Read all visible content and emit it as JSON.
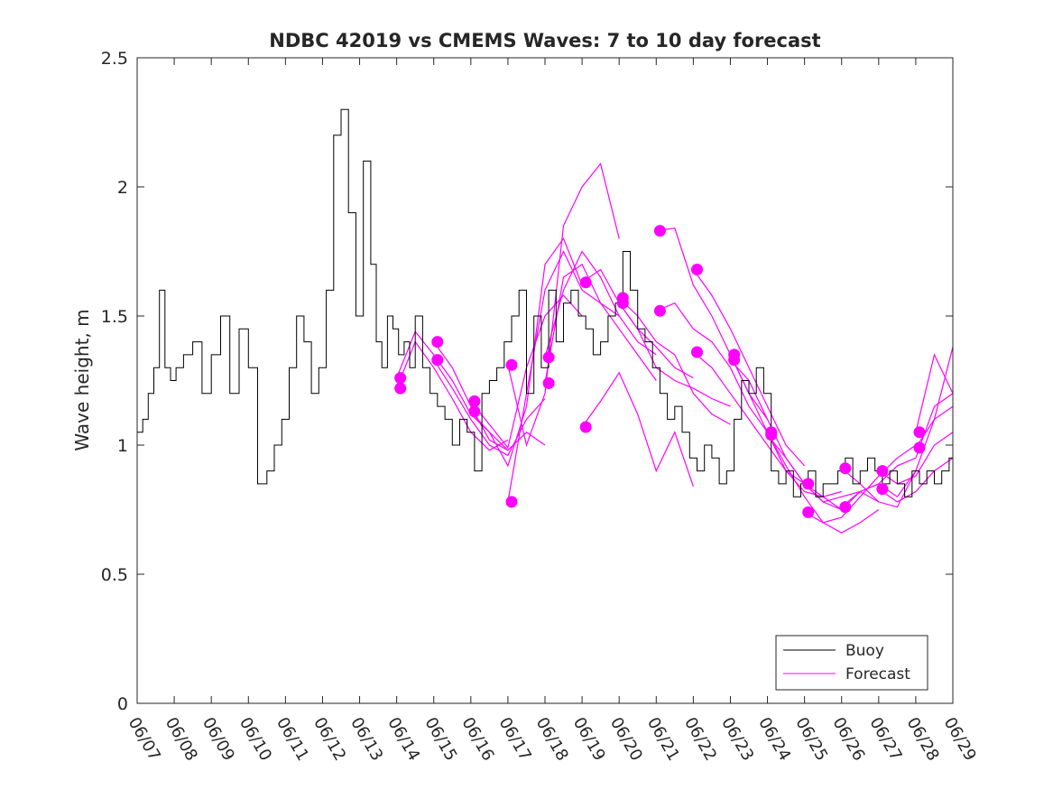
{
  "chart_data": {
    "type": "line",
    "title": "NDBC 42019 vs CMEMS Waves: 7 to 10 day forecast",
    "xlabel": "",
    "ylabel": "Wave height, m",
    "xlim": [
      "06/07",
      "06/29"
    ],
    "ylim": [
      0,
      2.5
    ],
    "x_ticks": [
      "06/07",
      "06/08",
      "06/09",
      "06/10",
      "06/11",
      "06/12",
      "06/13",
      "06/14",
      "06/15",
      "06/16",
      "06/17",
      "06/18",
      "06/19",
      "06/20",
      "06/21",
      "06/22",
      "06/23",
      "06/24",
      "06/25",
      "06/26",
      "06/27",
      "06/28",
      "06/29"
    ],
    "y_ticks": [
      0,
      0.5,
      1,
      1.5,
      2,
      2.5
    ],
    "y_tick_labels": [
      "0",
      "0.5",
      "1",
      "1.5",
      "2",
      "2.5"
    ],
    "legend": {
      "position": "bottom-right",
      "entries": [
        "Buoy",
        "Forecast"
      ]
    },
    "grid": false,
    "colors": {
      "buoy": "#000000",
      "forecast": "#ff00ff",
      "axis": "#262626"
    },
    "buoy": {
      "name": "Buoy",
      "x_days": [
        0,
        0.15,
        0.3,
        0.45,
        0.6,
        0.75,
        0.9,
        1.05,
        1.25,
        1.5,
        1.75,
        2.0,
        2.25,
        2.5,
        2.75,
        3.0,
        3.25,
        3.5,
        3.7,
        3.9,
        4.1,
        4.3,
        4.5,
        4.7,
        4.9,
        5.1,
        5.3,
        5.5,
        5.7,
        5.9,
        6.1,
        6.3,
        6.45,
        6.6,
        6.75,
        6.9,
        7.05,
        7.2,
        7.35,
        7.5,
        7.7,
        7.9,
        8.1,
        8.3,
        8.5,
        8.7,
        8.9,
        9.1,
        9.3,
        9.5,
        9.7,
        9.9,
        10.1,
        10.3,
        10.5,
        10.7,
        10.9,
        11.1,
        11.3,
        11.5,
        11.7,
        11.9,
        12.1,
        12.3,
        12.5,
        12.7,
        12.9,
        13.1,
        13.3,
        13.5,
        13.7,
        13.9,
        14.1,
        14.3,
        14.5,
        14.7,
        14.9,
        15.1,
        15.3,
        15.5,
        15.7,
        15.9,
        16.1,
        16.3,
        16.5,
        16.7,
        16.9,
        17.1,
        17.3,
        17.5,
        17.7,
        17.9,
        18.1,
        18.3,
        18.5,
        18.7,
        18.9,
        19.1,
        19.3,
        19.5,
        19.7,
        19.9,
        20.1,
        20.3,
        20.5,
        20.7,
        20.9,
        21.1,
        21.3,
        21.5,
        21.7,
        21.9,
        22.0
      ],
      "y": [
        1.05,
        1.1,
        1.2,
        1.3,
        1.6,
        1.3,
        1.25,
        1.3,
        1.35,
        1.4,
        1.2,
        1.35,
        1.5,
        1.2,
        1.45,
        1.3,
        0.85,
        0.9,
        1.0,
        1.1,
        1.3,
        1.5,
        1.4,
        1.2,
        1.3,
        1.6,
        2.2,
        2.3,
        1.9,
        1.5,
        2.1,
        1.7,
        1.4,
        1.3,
        1.5,
        1.45,
        1.35,
        1.4,
        1.3,
        1.5,
        1.3,
        1.2,
        1.15,
        1.1,
        1.0,
        1.1,
        1.05,
        0.9,
        1.2,
        1.25,
        1.3,
        1.4,
        1.5,
        1.6,
        1.2,
        1.5,
        1.3,
        1.6,
        1.4,
        1.55,
        1.6,
        1.5,
        1.45,
        1.35,
        1.4,
        1.5,
        1.55,
        1.75,
        1.6,
        1.45,
        1.4,
        1.3,
        1.2,
        1.1,
        1.15,
        1.05,
        0.95,
        0.9,
        1.0,
        0.95,
        0.85,
        0.9,
        1.1,
        1.25,
        1.2,
        1.3,
        1.2,
        0.9,
        0.85,
        0.9,
        0.8,
        0.85,
        0.9,
        0.8,
        0.85,
        0.85,
        0.9,
        0.95,
        0.85,
        0.9,
        0.95,
        0.9,
        0.85,
        0.9,
        0.85,
        0.8,
        0.9,
        0.85,
        0.9,
        0.85,
        0.9,
        0.95,
        0.9
      ]
    },
    "forecast_series": [
      {
        "x_days": [
          7.0,
          7.5,
          8.0,
          8.5,
          9.0,
          9.5,
          10.0
        ],
        "y": [
          1.26,
          1.44,
          1.35,
          1.25,
          1.12,
          1.05,
          0.98
        ]
      },
      {
        "x_days": [
          7.0,
          7.5,
          8.0,
          8.5,
          9.0,
          9.5,
          10.0
        ],
        "y": [
          1.22,
          1.4,
          1.3,
          1.18,
          1.05,
          0.98,
          1.02
        ]
      },
      {
        "x_days": [
          8.0,
          8.5,
          9.0,
          9.5,
          10.0,
          10.5,
          11.0
        ],
        "y": [
          1.4,
          1.3,
          1.15,
          1.02,
          0.98,
          1.05,
          1.0
        ]
      },
      {
        "x_days": [
          8.0,
          8.5,
          9.0,
          9.5,
          10.0,
          10.5,
          11.0
        ],
        "y": [
          1.33,
          1.22,
          1.1,
          1.0,
          0.96,
          1.1,
          1.18
        ]
      },
      {
        "x_days": [
          9.0,
          9.5,
          10.0,
          10.5,
          11.0,
          11.5,
          12.0
        ],
        "y": [
          1.17,
          1.08,
          0.99,
          1.3,
          1.5,
          1.58,
          1.5
        ]
      },
      {
        "x_days": [
          9.0,
          9.5,
          10.0,
          10.5,
          11.0,
          11.5,
          12.0
        ],
        "y": [
          1.13,
          1.05,
          0.92,
          1.15,
          1.7,
          1.8,
          1.62
        ]
      },
      {
        "x_days": [
          10.0,
          10.5,
          11.0,
          11.5,
          12.0,
          12.5,
          13.0
        ],
        "y": [
          1.31,
          1.0,
          1.2,
          1.85,
          2.0,
          2.09,
          1.8
        ]
      },
      {
        "x_days": [
          10.0,
          10.5,
          11.0,
          11.5,
          12.0,
          12.5,
          13.0
        ],
        "y": [
          0.78,
          1.2,
          1.6,
          1.75,
          1.6,
          1.55,
          1.5
        ]
      },
      {
        "x_days": [
          11.0,
          11.5,
          12.0,
          12.5,
          13.0,
          13.5,
          14.0
        ],
        "y": [
          1.34,
          1.6,
          1.75,
          1.65,
          1.5,
          1.4,
          1.35
        ]
      },
      {
        "x_days": [
          11.0,
          11.5,
          12.0,
          12.5,
          13.0,
          13.5,
          14.0
        ],
        "y": [
          1.24,
          1.65,
          1.7,
          1.55,
          1.45,
          1.35,
          1.25
        ]
      },
      {
        "x_days": [
          12.0,
          12.5,
          13.0,
          13.5,
          14.0,
          14.5,
          15.0
        ],
        "y": [
          1.07,
          1.17,
          1.28,
          1.12,
          0.9,
          1.05,
          0.84
        ]
      },
      {
        "x_days": [
          12.0,
          12.5,
          13.0,
          13.5,
          14.0,
          14.5,
          15.0
        ],
        "y": [
          1.63,
          1.68,
          1.55,
          1.45,
          1.38,
          1.3,
          1.26
        ]
      },
      {
        "x_days": [
          13.0,
          13.5,
          14.0,
          14.5,
          15.0,
          15.5,
          16.0
        ],
        "y": [
          1.57,
          1.5,
          1.4,
          1.35,
          1.2,
          1.12,
          1.08
        ]
      },
      {
        "x_days": [
          13.0,
          13.5,
          14.0,
          14.5,
          15.0,
          15.5,
          16.0
        ],
        "y": [
          1.55,
          1.45,
          1.3,
          1.25,
          1.22,
          1.18,
          1.15
        ]
      },
      {
        "x_days": [
          14.0,
          14.5,
          15.0,
          15.5,
          16.0,
          16.5,
          17.0
        ],
        "y": [
          1.83,
          1.84,
          1.62,
          1.5,
          1.35,
          1.2,
          1.1
        ]
      },
      {
        "x_days": [
          14.0,
          14.5,
          15.0,
          15.5,
          16.0,
          16.5,
          17.0
        ],
        "y": [
          1.52,
          1.55,
          1.45,
          1.4,
          1.3,
          1.15,
          1.05
        ]
      },
      {
        "x_days": [
          15.0,
          15.5,
          16.0,
          16.5,
          17.0,
          17.5,
          18.0
        ],
        "y": [
          1.68,
          1.58,
          1.45,
          1.3,
          1.15,
          1.0,
          0.92
        ]
      },
      {
        "x_days": [
          15.0,
          15.5,
          16.0,
          16.5,
          17.0,
          17.5,
          18.0
        ],
        "y": [
          1.36,
          1.3,
          1.2,
          1.1,
          1.0,
          0.9,
          0.85
        ]
      },
      {
        "x_days": [
          16.0,
          16.5,
          17.0,
          17.5,
          18.0,
          18.5,
          19.0
        ],
        "y": [
          1.35,
          1.2,
          1.05,
          0.9,
          0.82,
          0.8,
          0.75
        ]
      },
      {
        "x_days": [
          16.0,
          16.5,
          17.0,
          17.5,
          18.0,
          18.5,
          19.0
        ],
        "y": [
          1.33,
          1.25,
          1.1,
          0.95,
          0.85,
          0.8,
          0.82
        ]
      },
      {
        "x_days": [
          17.0,
          17.5,
          18.0,
          18.5,
          19.0,
          19.5,
          20.0
        ],
        "y": [
          1.05,
          0.92,
          0.8,
          0.7,
          0.66,
          0.7,
          0.75
        ]
      },
      {
        "x_days": [
          17.0,
          17.5,
          18.0,
          18.5,
          19.0,
          19.5,
          20.0
        ],
        "y": [
          1.04,
          0.95,
          0.85,
          0.78,
          0.8,
          0.82,
          0.78
        ]
      },
      {
        "x_days": [
          18.0,
          18.5,
          19.0,
          19.5,
          20.0,
          20.5,
          21.0
        ],
        "y": [
          0.85,
          0.78,
          0.75,
          0.82,
          0.85,
          0.8,
          0.9
        ]
      },
      {
        "x_days": [
          18.0,
          18.5,
          19.0,
          19.5,
          20.0,
          20.5,
          21.0
        ],
        "y": [
          0.74,
          0.7,
          0.72,
          0.8,
          0.88,
          0.95,
          1.0
        ]
      },
      {
        "x_days": [
          19.0,
          19.5,
          20.0,
          20.5,
          21.0,
          21.5,
          22.0
        ],
        "y": [
          0.91,
          0.85,
          0.78,
          0.76,
          0.9,
          1.1,
          1.38
        ]
      },
      {
        "x_days": [
          19.0,
          19.5,
          20.0,
          20.5,
          21.0,
          21.5,
          22.0
        ],
        "y": [
          0.76,
          0.82,
          0.85,
          0.92,
          0.95,
          1.15,
          1.2
        ]
      },
      {
        "x_days": [
          20.0,
          20.5,
          21.0,
          21.5,
          22.0
        ],
        "y": [
          0.9,
          0.85,
          0.88,
          1.0,
          1.05
        ]
      },
      {
        "x_days": [
          20.0,
          20.5,
          21.0,
          21.5,
          22.0
        ],
        "y": [
          0.83,
          0.78,
          0.82,
          0.9,
          0.95
        ]
      },
      {
        "x_days": [
          21.0,
          21.5,
          22.0
        ],
        "y": [
          1.05,
          1.35,
          1.2
        ]
      },
      {
        "x_days": [
          21.0,
          21.5,
          22.0
        ],
        "y": [
          0.99,
          1.1,
          1.15
        ]
      }
    ],
    "forecast_start_markers": {
      "x_days": [
        7.1,
        7.1,
        8.1,
        8.1,
        9.1,
        9.1,
        10.1,
        10.1,
        11.1,
        11.1,
        12.1,
        12.1,
        13.1,
        13.1,
        14.1,
        14.1,
        15.1,
        15.1,
        16.1,
        16.1,
        17.1,
        17.1,
        18.1,
        18.1,
        19.1,
        19.1,
        20.1,
        20.1,
        21.1,
        21.1
      ],
      "y": [
        1.26,
        1.22,
        1.4,
        1.33,
        1.17,
        1.13,
        1.31,
        0.78,
        1.34,
        1.24,
        1.07,
        1.63,
        1.57,
        1.55,
        1.83,
        1.52,
        1.68,
        1.36,
        1.35,
        1.33,
        1.05,
        1.04,
        0.85,
        0.74,
        0.91,
        0.76,
        0.9,
        0.83,
        1.05,
        0.99
      ]
    }
  }
}
